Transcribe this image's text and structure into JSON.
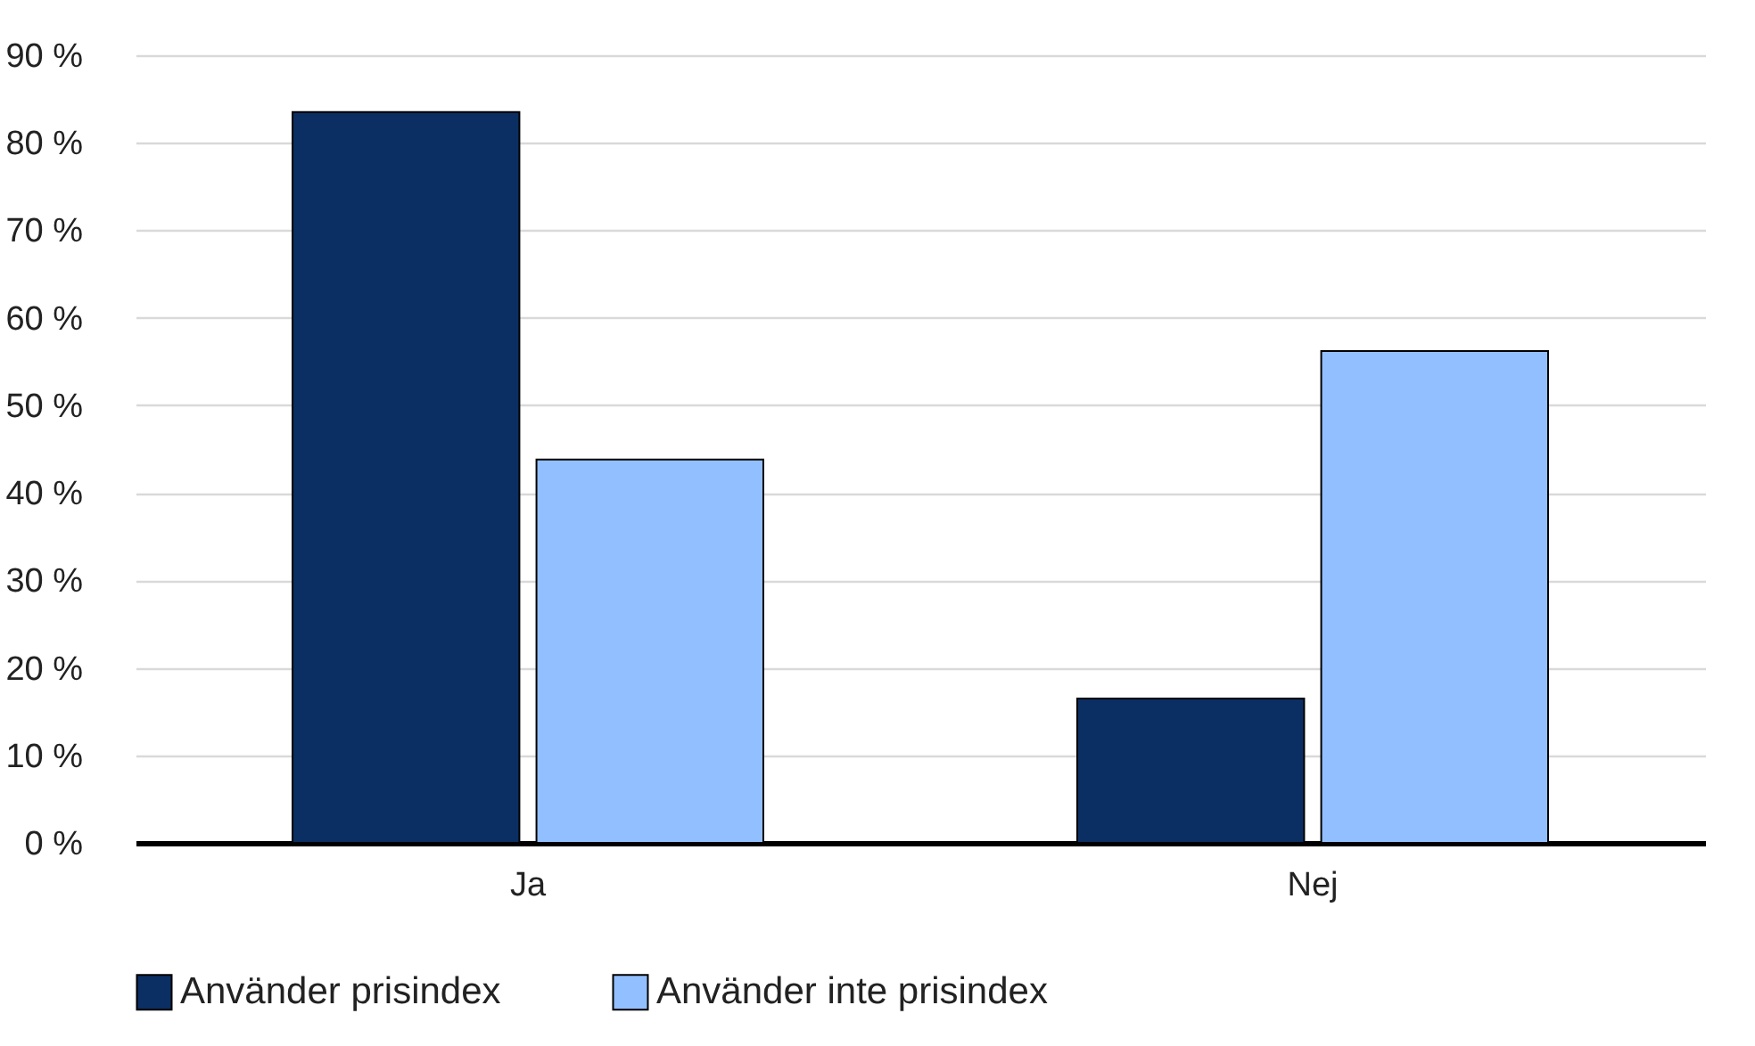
{
  "chart_data": {
    "type": "bar",
    "categories": [
      "Ja",
      "Nej"
    ],
    "series": [
      {
        "name": "Använder prisindex",
        "color": "#0b2e63",
        "values": [
          83.5,
          16.5
        ]
      },
      {
        "name": "Använder inte prisindex",
        "color": "#92bfff",
        "values": [
          43.8,
          56.2
        ]
      }
    ],
    "ylim": [
      0,
      90
    ],
    "yticks": [
      {
        "value": 0,
        "label": "0 %"
      },
      {
        "value": 10,
        "label": "10 %"
      },
      {
        "value": 20,
        "label": "20 %"
      },
      {
        "value": 30,
        "label": "30 %"
      },
      {
        "value": 40,
        "label": "40 %"
      },
      {
        "value": 50,
        "label": "50 %"
      },
      {
        "value": 60,
        "label": "60 %"
      },
      {
        "value": 70,
        "label": "70 %"
      },
      {
        "value": 80,
        "label": "80 %"
      },
      {
        "value": 90,
        "label": "90 %"
      }
    ],
    "grid": "y",
    "legend": "bottom"
  }
}
